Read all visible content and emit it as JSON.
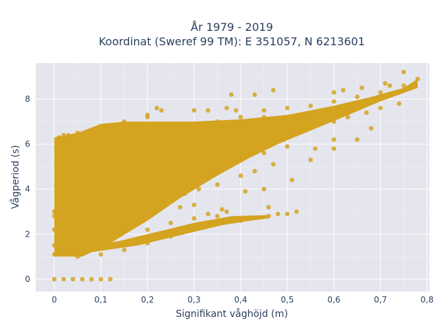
{
  "chart_data": {
    "type": "scatter",
    "title": "År 1979 - 2019",
    "subtitle": "Koordinat (Sweref 99 TM): E 351057, N 6213601",
    "xlabel": "Signifikant våghöjd (m)",
    "ylabel": "Vågperiod (s)",
    "xlim": [
      -0.04,
      0.805
    ],
    "ylim": [
      -0.55,
      9.6
    ],
    "x_ticks": [
      0,
      0.1,
      0.2,
      0.3,
      0.4,
      0.5,
      0.6,
      0.7,
      0.8
    ],
    "x_tick_labels": [
      "0",
      "0,1",
      "0,2",
      "0,3",
      "0,4",
      "0,5",
      "0,6",
      "0,7",
      "0,8"
    ],
    "y_ticks": [
      0,
      2,
      4,
      6,
      8
    ],
    "y_tick_labels": [
      "0",
      "2",
      "4",
      "6",
      "8"
    ],
    "grid": true,
    "marker_color": "#D4A420",
    "plot_bg": "#E5E5EE",
    "series": [
      {
        "values": [
          [
            0.0,
            0.0
          ],
          [
            0.02,
            0.0
          ],
          [
            0.04,
            0.0
          ],
          [
            0.06,
            0.0
          ],
          [
            0.08,
            0.0
          ],
          [
            0.1,
            0.0
          ],
          [
            0.12,
            0.0
          ],
          [
            0.0,
            1.1
          ],
          [
            0.0,
            1.5
          ],
          [
            0.0,
            2.2
          ],
          [
            0.0,
            2.8
          ],
          [
            0.0,
            3.0
          ],
          [
            0.01,
            5.6
          ],
          [
            0.01,
            6.3
          ],
          [
            0.02,
            6.4
          ],
          [
            0.03,
            6.4
          ],
          [
            0.05,
            6.5
          ],
          [
            0.1,
            6.8
          ],
          [
            0.15,
            7.0
          ],
          [
            0.2,
            7.2
          ],
          [
            0.23,
            7.5
          ],
          [
            0.3,
            7.5
          ],
          [
            0.33,
            7.5
          ],
          [
            0.37,
            7.6
          ],
          [
            0.39,
            7.5
          ],
          [
            0.45,
            7.5
          ],
          [
            0.5,
            7.6
          ],
          [
            0.55,
            7.7
          ],
          [
            0.6,
            7.9
          ],
          [
            0.65,
            8.1
          ],
          [
            0.7,
            8.3
          ],
          [
            0.75,
            8.6
          ],
          [
            0.78,
            8.9
          ],
          [
            0.75,
            9.2
          ],
          [
            0.38,
            8.2
          ],
          [
            0.43,
            8.2
          ],
          [
            0.47,
            8.4
          ],
          [
            0.6,
            8.3
          ],
          [
            0.62,
            8.4
          ],
          [
            0.66,
            8.5
          ],
          [
            0.72,
            8.6
          ],
          [
            0.71,
            8.7
          ],
          [
            0.05,
            1.0
          ],
          [
            0.1,
            1.1
          ],
          [
            0.15,
            1.3
          ],
          [
            0.2,
            1.6
          ],
          [
            0.25,
            1.9
          ],
          [
            0.3,
            2.2
          ],
          [
            0.33,
            2.4
          ],
          [
            0.38,
            2.6
          ],
          [
            0.42,
            2.7
          ],
          [
            0.46,
            2.8
          ],
          [
            0.5,
            2.9
          ],
          [
            0.52,
            3.0
          ],
          [
            0.2,
            2.2
          ],
          [
            0.25,
            2.5
          ],
          [
            0.3,
            2.7
          ],
          [
            0.35,
            2.8
          ],
          [
            0.4,
            2.6
          ],
          [
            0.37,
            3.0
          ],
          [
            0.46,
            3.2
          ],
          [
            0.48,
            2.9
          ],
          [
            0.27,
            3.2
          ],
          [
            0.3,
            3.3
          ],
          [
            0.33,
            2.9
          ],
          [
            0.36,
            3.1
          ],
          [
            0.25,
            3.5
          ],
          [
            0.28,
            3.8
          ],
          [
            0.31,
            4.0
          ],
          [
            0.35,
            4.2
          ],
          [
            0.4,
            4.6
          ],
          [
            0.43,
            4.8
          ],
          [
            0.47,
            5.1
          ],
          [
            0.41,
            3.9
          ],
          [
            0.45,
            4.0
          ],
          [
            0.51,
            4.4
          ],
          [
            0.55,
            5.3
          ],
          [
            0.6,
            5.8
          ],
          [
            0.65,
            6.2
          ],
          [
            0.68,
            6.7
          ],
          [
            0.3,
            4.6
          ],
          [
            0.35,
            5.0
          ],
          [
            0.38,
            5.3
          ],
          [
            0.45,
            5.6
          ],
          [
            0.5,
            5.9
          ],
          [
            0.56,
            5.8
          ],
          [
            0.6,
            6.2
          ],
          [
            0.55,
            6.8
          ],
          [
            0.6,
            7.0
          ],
          [
            0.63,
            7.2
          ],
          [
            0.67,
            7.4
          ],
          [
            0.7,
            7.6
          ],
          [
            0.74,
            7.8
          ],
          [
            0.35,
            7.0
          ],
          [
            0.4,
            7.2
          ],
          [
            0.45,
            7.2
          ],
          [
            0.48,
            7.1
          ],
          [
            0.2,
            7.3
          ],
          [
            0.22,
            7.6
          ]
        ]
      }
    ]
  }
}
